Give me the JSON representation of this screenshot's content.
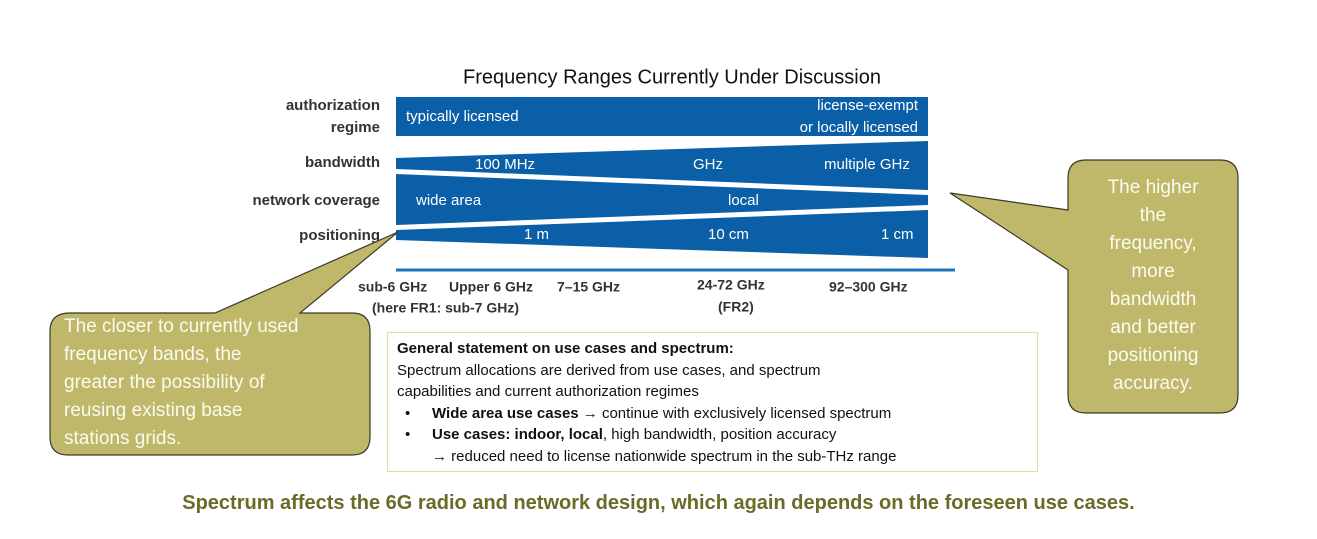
{
  "title": "Frequency Ranges Currently Under Discussion",
  "rows": [
    {
      "label": [
        "authorization",
        "regime"
      ],
      "items": [
        "typically licensed",
        "license-exempt",
        "or locally licensed"
      ]
    },
    {
      "label": [
        "bandwidth"
      ],
      "items": [
        "100 MHz",
        "GHz",
        "multiple GHz"
      ]
    },
    {
      "label": [
        "network coverage"
      ],
      "items": [
        "wide area",
        "local"
      ]
    },
    {
      "label": [
        "positioning"
      ],
      "items": [
        "1 m",
        "10 cm",
        "1 cm"
      ]
    }
  ],
  "frequencies": [
    [
      "sub-6 GHz",
      "(here FR1: sub-7 GHz)"
    ],
    [
      "Upper 6 GHz"
    ],
    [
      "7–15 GHz"
    ],
    [
      "24-72 GHz",
      "(FR2)"
    ],
    [
      "92–300 GHz"
    ]
  ],
  "callouts": {
    "left": [
      "The closer to currently used",
      "frequency bands, the",
      "greater the possibility of",
      "reusing existing base",
      "stations grids."
    ],
    "right": [
      "The higher",
      "the",
      "frequency,",
      "more",
      "bandwidth",
      "and better",
      "positioning",
      "accuracy."
    ]
  },
  "statement": {
    "heading": "General statement on use cases and spectrum:",
    "text": [
      "Spectrum allocations are derived from use cases, and spectrum",
      "capabilities and current authorization regimes"
    ],
    "bullets": [
      {
        "bold": "Wide area use cases →",
        "text": " continue with exclusively licensed spectrum"
      },
      {
        "bold": "Use cases: indoor, local",
        "text": ", high bandwidth, position accuracy",
        "continuation": "→ reduced need to license nationwide spectrum in the sub-THz range"
      }
    ]
  },
  "footer": "Spectrum affects the 6G radio and network design, which again depends on the foreseen use cases."
}
